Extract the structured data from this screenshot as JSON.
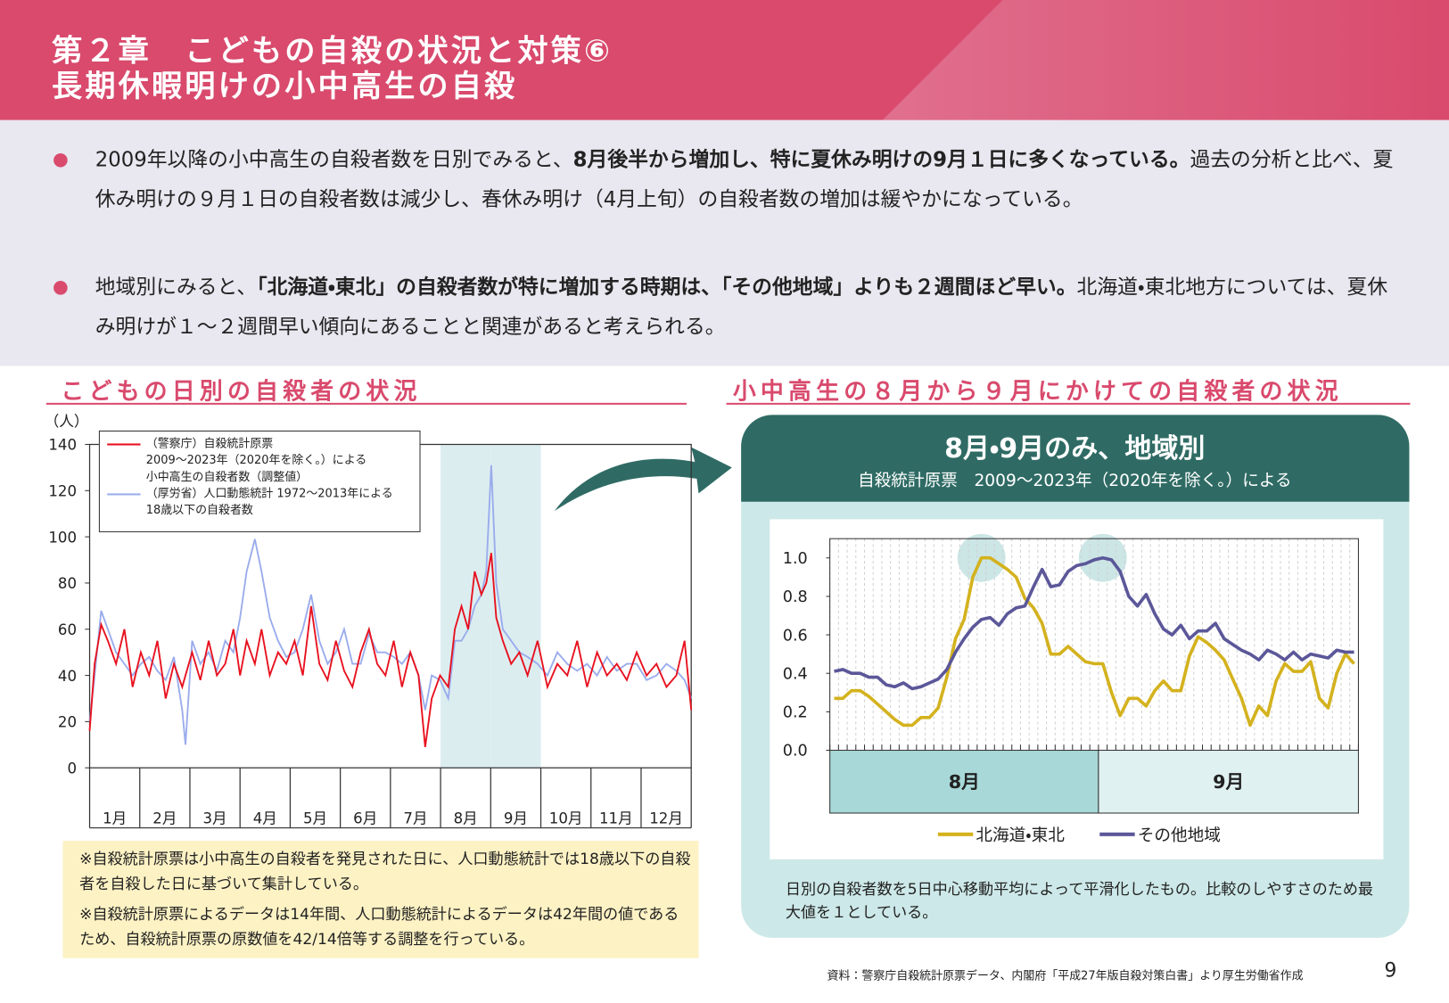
{
  "header": {
    "chapter": "第２章　こどもの自殺の状況と対策⑥",
    "title": "長期休暇明けの小中高生の自殺"
  },
  "bullets": [
    [
      {
        "text": "2009年以降の小中高生の自殺者数を日別でみると、",
        "bold": false
      },
      {
        "text": "8月後半から増加し、特に夏休み明けの9月１日に多くなっている。",
        "bold": true
      },
      {
        "text": "過去の分析と比べ、夏休み明けの９月１日の自殺者数は減少し、春休み明け（4月上旬）の自殺者数の増加は緩やかになっている。",
        "bold": false
      }
    ],
    [
      {
        "text": "地域別にみると、",
        "bold": false
      },
      {
        "text": "「北海道・東北」の自殺者数が特に増加する時期は、「その他地域」よりも２週間ほど早い。",
        "bold": true
      },
      {
        "text": "北海道・東北地方については、夏休み明けが１～２週間早い傾向にあることと関連があると考えられる。",
        "bold": false
      }
    ]
  ],
  "left_section": {
    "heading": "こどもの日別の自殺者の状況",
    "notes": [
      "※自殺統計原票は小中高生の自殺者を発見された日に、人口動態統計では18歳以下の自殺者を自殺した日に基づいて集計している。",
      "※自殺統計原票によるデータは14年間、人口動態統計によるデータは42年間の値であるため、自殺統計原票の原数値を42/14倍等する調整を行っている。"
    ]
  },
  "right_section": {
    "heading": "小中高生の８月から９月にかけての自殺者の状況",
    "note": "日別の自殺者数を5日中心移動平均によって平滑化したもの。比較のしやすさのため最大値を１としている。"
  },
  "chart_data": [
    {
      "type": "line",
      "y_unit": "（人）",
      "categories": [
        "1月",
        "2月",
        "3月",
        "4月",
        "5月",
        "6月",
        "7月",
        "8月",
        "9月",
        "10月",
        "11月",
        "12月"
      ],
      "highlight": [
        "8月",
        "9月"
      ],
      "x": [
        1,
        4,
        8,
        12,
        17,
        22,
        27,
        32,
        37,
        42,
        47,
        52,
        57,
        59,
        63,
        68,
        73,
        78,
        83,
        88,
        92,
        96,
        101,
        105,
        110,
        115,
        120,
        125,
        130,
        135,
        140,
        145,
        150,
        155,
        160,
        165,
        170,
        175,
        180,
        185,
        190,
        195,
        200,
        204,
        208,
        213,
        218,
        222,
        226,
        230,
        234,
        238,
        241,
        244,
        247,
        251,
        256,
        261,
        266,
        272,
        278,
        284,
        290,
        296,
        302,
        308,
        314,
        320,
        326,
        332,
        338,
        344,
        350,
        356,
        361,
        365
      ],
      "xlim": [
        1,
        365
      ],
      "ylim": [
        0,
        140
      ],
      "yticks": [
        0,
        20,
        40,
        60,
        80,
        100,
        120,
        140
      ],
      "series": [
        {
          "name": "（警察庁）自殺統計原票\n2009～2023年（2020年を除く。）による\n小中高生の自殺者数（調整値）",
          "color": "#e8101e",
          "values": [
            16,
            45,
            62,
            55,
            45,
            60,
            35,
            50,
            40,
            55,
            30,
            45,
            35,
            40,
            50,
            38,
            55,
            40,
            45,
            60,
            40,
            55,
            45,
            60,
            40,
            50,
            45,
            55,
            40,
            70,
            45,
            38,
            55,
            42,
            35,
            50,
            60,
            45,
            40,
            55,
            35,
            50,
            40,
            9,
            30,
            40,
            35,
            60,
            70,
            60,
            85,
            75,
            80,
            93,
            65,
            55,
            45,
            50,
            40,
            55,
            35,
            45,
            40,
            55,
            35,
            50,
            40,
            45,
            38,
            50,
            40,
            45,
            35,
            40,
            55,
            25
          ]
        },
        {
          "name": "（厚労省）人口動態統計 1972～2013年による\n18歳以下の自殺者数",
          "color": "#9aacec",
          "values": [
            20,
            40,
            68,
            60,
            50,
            45,
            40,
            45,
            48,
            42,
            38,
            48,
            25,
            10,
            55,
            45,
            50,
            42,
            55,
            50,
            65,
            85,
            99,
            85,
            65,
            55,
            48,
            50,
            60,
            75,
            55,
            45,
            50,
            60,
            45,
            45,
            58,
            50,
            50,
            48,
            45,
            50,
            40,
            25,
            40,
            38,
            30,
            55,
            55,
            60,
            70,
            75,
            85,
            131,
            80,
            60,
            55,
            50,
            48,
            45,
            40,
            50,
            45,
            42,
            45,
            40,
            48,
            42,
            45,
            45,
            38,
            40,
            45,
            42,
            38,
            30
          ]
        }
      ]
    },
    {
      "type": "line",
      "title": "8月・9月のみ、地域別",
      "subtitle": "自殺統計原票　2009～2023年（2020年を除く。）による",
      "periods": [
        "8月",
        "9月"
      ],
      "ylim": [
        0,
        1.1
      ],
      "yticks": [
        {
          "value": 0,
          "label": "0.0"
        },
        {
          "value": 0.2,
          "label": "0.2"
        },
        {
          "value": 0.4,
          "label": "0.4"
        },
        {
          "value": 0.6,
          "label": "0.6"
        },
        {
          "value": 0.8,
          "label": "0.8"
        },
        {
          "value": 1,
          "label": "1.0"
        }
      ],
      "series": [
        {
          "name": "北海道・東北",
          "color": "#d4b21e",
          "values": [
            0.27,
            0.27,
            0.31,
            0.31,
            0.28,
            0.24,
            0.2,
            0.16,
            0.13,
            0.13,
            0.17,
            0.17,
            0.22,
            0.38,
            0.58,
            0.68,
            0.9,
            1.0,
            1.0,
            0.97,
            0.94,
            0.9,
            0.79,
            0.74,
            0.66,
            0.5,
            0.5,
            0.54,
            0.5,
            0.46,
            0.45,
            0.45,
            0.3,
            0.18,
            0.27,
            0.27,
            0.23,
            0.31,
            0.36,
            0.31,
            0.31,
            0.49,
            0.59,
            0.56,
            0.52,
            0.47,
            0.37,
            0.27,
            0.13,
            0.23,
            0.18,
            0.36,
            0.45,
            0.41,
            0.41,
            0.46,
            0.27,
            0.22,
            0.4,
            0.5,
            0.45
          ]
        },
        {
          "name": "その他地域",
          "color": "#5b5799",
          "values": [
            0.41,
            0.42,
            0.4,
            0.4,
            0.38,
            0.38,
            0.34,
            0.33,
            0.35,
            0.32,
            0.33,
            0.35,
            0.37,
            0.42,
            0.51,
            0.58,
            0.64,
            0.68,
            0.69,
            0.65,
            0.71,
            0.74,
            0.75,
            0.85,
            0.94,
            0.85,
            0.86,
            0.93,
            0.96,
            0.97,
            0.99,
            1.0,
            0.99,
            0.93,
            0.8,
            0.75,
            0.81,
            0.71,
            0.63,
            0.6,
            0.65,
            0.58,
            0.62,
            0.62,
            0.66,
            0.58,
            0.55,
            0.52,
            0.5,
            0.47,
            0.52,
            0.5,
            0.47,
            0.51,
            0.47,
            0.5,
            0.49,
            0.48,
            0.52,
            0.51,
            0.51
          ]
        }
      ]
    }
  ],
  "footer": {
    "source": "資料：警察庁自殺統計原票データ、内閣府「平成27年版自殺対策白書」より厚生労働省作成",
    "page": "9"
  }
}
